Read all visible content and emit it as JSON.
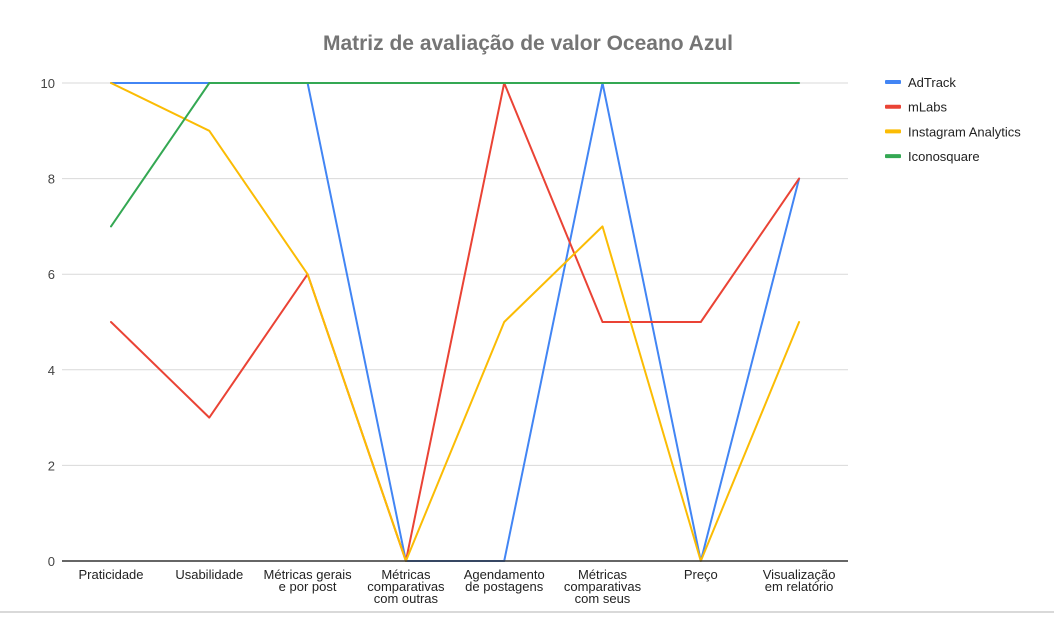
{
  "chart_data": {
    "type": "line",
    "title": "Matriz de avaliação de valor Oceano Azul",
    "categories": [
      [
        "Praticidade"
      ],
      [
        "Usabilidade"
      ],
      [
        "Métricas gerais",
        "e por post"
      ],
      [
        "Métricas",
        "comparativas",
        "com outras"
      ],
      [
        "Agendamento",
        "de postagens"
      ],
      [
        "Métricas",
        "comparativas",
        "com seus"
      ],
      [
        "Preço"
      ],
      [
        "Visualização",
        "em relatório"
      ]
    ],
    "ylim": [
      0,
      10
    ],
    "yticks": [
      0,
      2,
      4,
      6,
      8,
      10
    ],
    "grid": true,
    "legend_position": "right",
    "series": [
      {
        "name": "AdTrack",
        "color": "#4285f4",
        "values": [
          10,
          10,
          10,
          0,
          0,
          10,
          0,
          8
        ]
      },
      {
        "name": "mLabs",
        "color": "#ea4335",
        "values": [
          5,
          3,
          6,
          0,
          10,
          5,
          5,
          8
        ]
      },
      {
        "name": "Instagram Analytics",
        "color": "#fbbc04",
        "values": [
          10,
          9,
          6,
          0,
          5,
          7,
          0,
          5
        ]
      },
      {
        "name": "Iconosquare",
        "color": "#34a853",
        "values": [
          7,
          10,
          10,
          10,
          10,
          10,
          10,
          10
        ]
      }
    ]
  }
}
